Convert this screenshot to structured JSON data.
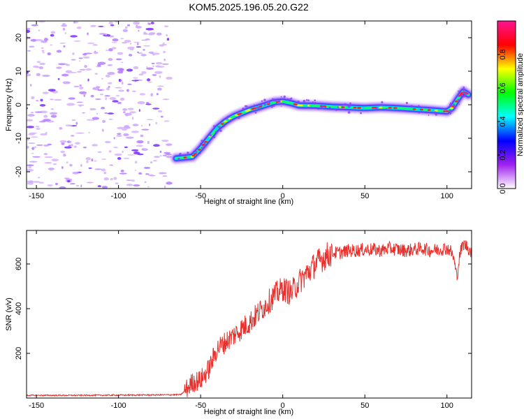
{
  "figure": {
    "title": "KOM5.2025.196.05.20.G22"
  },
  "chart_data": [
    {
      "type": "heatmap",
      "xlabel": "Height of straight line (km)",
      "ylabel": "Frequency (Hz)",
      "xlim": [
        -156,
        115
      ],
      "ylim": [
        -25,
        25
      ],
      "x_ticks": [
        -150,
        -100,
        -50,
        0,
        50,
        100
      ],
      "y_ticks": [
        -20,
        -10,
        0,
        10,
        20
      ],
      "grid": false,
      "colorbar": {
        "label": "Normalized spectral amplitude",
        "range": [
          0,
          1
        ],
        "ticks": [
          0.0,
          0.2,
          0.4,
          0.6,
          0.8
        ],
        "tick_labels": [
          "0.0",
          "0.2",
          "0.4",
          "0.6",
          "0.8"
        ]
      },
      "ridge": {
        "x": [
          -65,
          -55,
          -50,
          -45,
          -40,
          -35,
          -30,
          -25,
          -20,
          -15,
          -10,
          -5,
          0,
          5,
          10,
          20,
          30,
          40,
          50,
          60,
          70,
          80,
          90,
          100,
          103,
          107,
          110,
          113
        ],
        "y": [
          -16,
          -15.5,
          -13,
          -10,
          -7,
          -5,
          -3.5,
          -2.5,
          -1.5,
          -0.8,
          0,
          0.8,
          1,
          0.5,
          -0.2,
          -0.3,
          -0.6,
          -0.8,
          -1,
          -0.8,
          -1,
          -1.3,
          -1.6,
          -2,
          -1,
          2,
          4,
          3
        ]
      }
    },
    {
      "type": "line",
      "xlabel": "Height of straight line (km)",
      "ylabel": "SNR (v/v)",
      "xlim": [
        -156,
        115
      ],
      "ylim": [
        0,
        750
      ],
      "x_ticks": [
        -150,
        -100,
        -50,
        0,
        50,
        100
      ],
      "y_ticks": [
        200,
        400,
        600
      ],
      "grid": false,
      "series": [
        {
          "color": "#e8302c",
          "x": [
            -156,
            -130,
            -100,
            -75,
            -62,
            -58,
            -55,
            -50,
            -45,
            -40,
            -35,
            -30,
            -25,
            -20,
            -15,
            -10,
            -5,
            0,
            5,
            10,
            15,
            20,
            25,
            30,
            35,
            40,
            45,
            50,
            55,
            60,
            65,
            70,
            75,
            80,
            85,
            90,
            95,
            100,
            102,
            104,
            106,
            108,
            110,
            112,
            115
          ],
          "y": [
            12,
            12,
            13,
            14,
            15,
            45,
            70,
            80,
            130,
            220,
            250,
            280,
            310,
            340,
            380,
            420,
            460,
            490,
            470,
            520,
            560,
            600,
            630,
            650,
            650,
            660,
            660,
            665,
            665,
            660,
            670,
            665,
            660,
            665,
            670,
            660,
            665,
            670,
            660,
            630,
            540,
            650,
            690,
            680,
            650
          ]
        }
      ]
    }
  ],
  "colors": {
    "snr_line": "#e8302c",
    "scale": [
      "#ffffff",
      "#a020f0",
      "#0000ff",
      "#00ffff",
      "#00ff00",
      "#ffff00",
      "#ff0000",
      "#ff1493"
    ]
  }
}
